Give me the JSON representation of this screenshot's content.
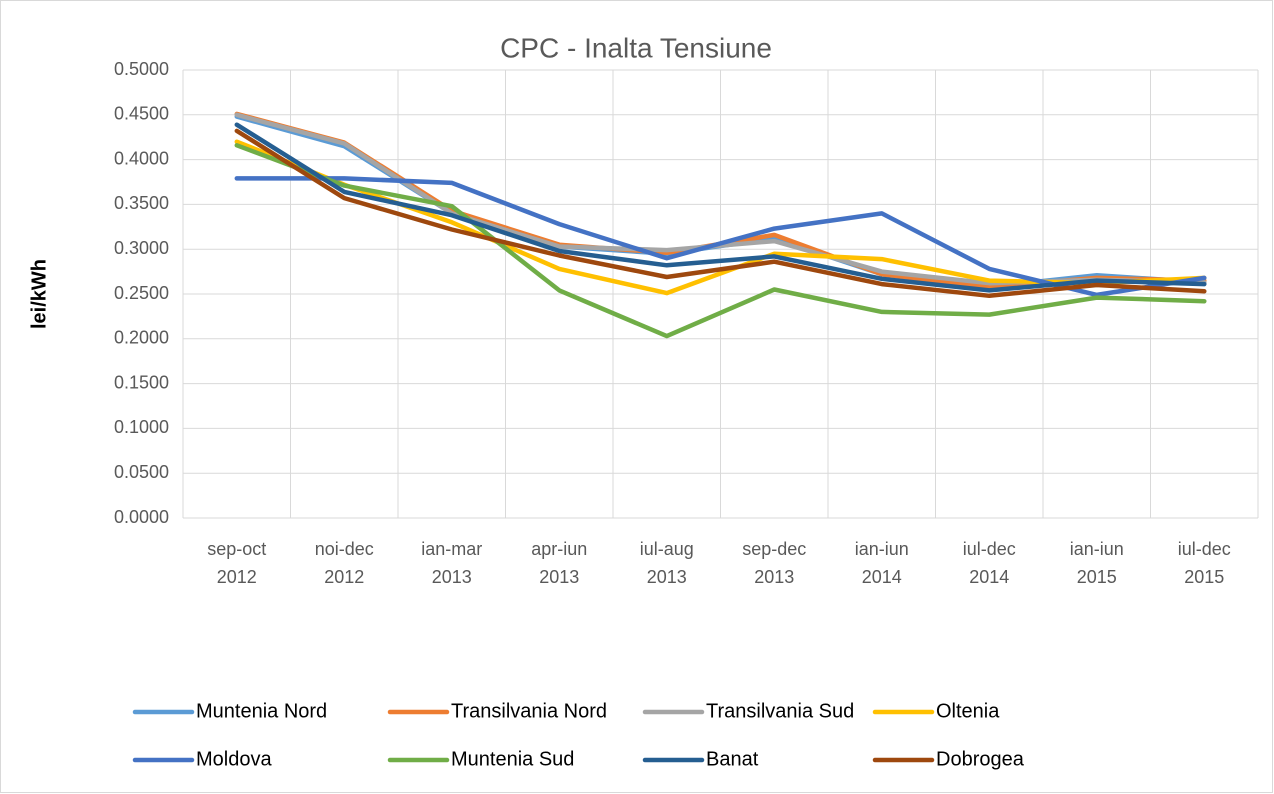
{
  "chart_data": {
    "type": "line",
    "title": "CPC - Inalta Tensiune",
    "ylabel": "lei/kWh",
    "categories": [
      [
        "sep-oct",
        "2012"
      ],
      [
        "noi-dec",
        "2012"
      ],
      [
        "ian-mar",
        "2013"
      ],
      [
        "apr-iun",
        "2013"
      ],
      [
        "iul-aug",
        "2013"
      ],
      [
        "sep-dec",
        "2013"
      ],
      [
        "ian-iun",
        "2014"
      ],
      [
        "iul-dec",
        "2014"
      ],
      [
        "ian-iun",
        "2015"
      ],
      [
        "iul-dec",
        "2015"
      ]
    ],
    "ylim": [
      0,
      0.5
    ],
    "yticks": [
      {
        "value": 0,
        "label": "0.0000"
      },
      {
        "value": 0.05,
        "label": "0.0500"
      },
      {
        "value": 0.1,
        "label": "0.1000"
      },
      {
        "value": 0.15,
        "label": "0.1500"
      },
      {
        "value": 0.2,
        "label": "0.2000"
      },
      {
        "value": 0.25,
        "label": "0.2500"
      },
      {
        "value": 0.3,
        "label": "0.3000"
      },
      {
        "value": 0.35,
        "label": "0.3500"
      },
      {
        "value": 0.4,
        "label": "0.4000"
      },
      {
        "value": 0.45,
        "label": "0.4500"
      },
      {
        "value": 0.5,
        "label": "0.5000"
      }
    ],
    "grid": true,
    "legend": "bottom",
    "series": [
      {
        "name": "Muntenia Nord",
        "color": "#5b9bd5",
        "values": [
          0.448,
          0.415,
          0.34,
          0.303,
          0.295,
          0.312,
          0.272,
          0.258,
          0.271,
          0.263
        ]
      },
      {
        "name": "Transilvania Nord",
        "color": "#ed7d31",
        "values": [
          0.451,
          0.419,
          0.343,
          0.305,
          0.296,
          0.316,
          0.272,
          0.258,
          0.268,
          0.265
        ]
      },
      {
        "name": "Transilvania Sud",
        "color": "#a5a5a5",
        "values": [
          0.45,
          0.418,
          0.34,
          0.303,
          0.299,
          0.309,
          0.275,
          0.262,
          0.266,
          0.263
        ]
      },
      {
        "name": "Oltenia",
        "color": "#ffc000",
        "values": [
          0.42,
          0.372,
          0.33,
          0.278,
          0.251,
          0.295,
          0.289,
          0.265,
          0.262,
          0.268
        ]
      },
      {
        "name": "Moldova",
        "color": "#4472c4",
        "values": [
          0.379,
          0.379,
          0.374,
          0.328,
          0.29,
          0.323,
          0.34,
          0.278,
          0.249,
          0.268
        ]
      },
      {
        "name": "Muntenia Sud",
        "color": "#70ad47",
        "values": [
          0.416,
          0.371,
          0.348,
          0.254,
          0.203,
          0.255,
          0.23,
          0.227,
          0.246,
          0.242
        ]
      },
      {
        "name": "Banat",
        "color": "#255e91",
        "values": [
          0.439,
          0.364,
          0.338,
          0.298,
          0.282,
          0.292,
          0.267,
          0.254,
          0.265,
          0.261
        ]
      },
      {
        "name": "Dobrogea",
        "color": "#9e480e",
        "values": [
          0.432,
          0.357,
          0.322,
          0.293,
          0.269,
          0.286,
          0.261,
          0.248,
          0.26,
          0.253
        ]
      }
    ]
  }
}
